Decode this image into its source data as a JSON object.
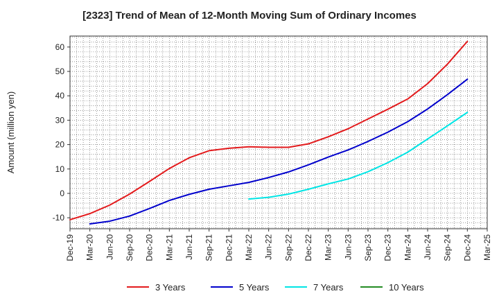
{
  "chart_data": {
    "type": "line",
    "title": "[2323]  Trend of Mean of 12-Month Moving Sum of Ordinary Incomes",
    "ylabel": "Amount (million yen)",
    "xlabel": "",
    "ylim": [
      -14.5,
      64.5
    ],
    "yticks": [
      -10,
      0,
      10,
      20,
      30,
      40,
      50,
      60
    ],
    "categories": [
      "Dec-19",
      "Mar-20",
      "Jun-20",
      "Sep-20",
      "Dec-20",
      "Mar-21",
      "Jun-21",
      "Sep-21",
      "Dec-21",
      "Mar-22",
      "Jun-22",
      "Sep-22",
      "Dec-22",
      "Mar-23",
      "Jun-23",
      "Sep-23",
      "Dec-23",
      "Mar-24",
      "Jun-24",
      "Sep-24",
      "Dec-24",
      "Mar-25"
    ],
    "grid": true,
    "legend_position": "bottom",
    "series": [
      {
        "name": "3 Years",
        "color": "#e31a1c",
        "values": [
          -10.8,
          -8.3,
          -4.8,
          -0.3,
          4.9,
          10.2,
          14.6,
          17.5,
          18.5,
          19.1,
          18.9,
          18.9,
          20.3,
          23.2,
          26.5,
          30.5,
          34.5,
          38.7,
          45.0,
          53.0,
          62.3,
          null
        ]
      },
      {
        "name": "5 Years",
        "color": "#0000cc",
        "values": [
          null,
          -12.5,
          -11.4,
          -9.3,
          -6.2,
          -2.9,
          -0.4,
          1.7,
          3.1,
          4.5,
          6.5,
          8.8,
          11.7,
          14.9,
          17.8,
          21.3,
          25.1,
          29.4,
          34.6,
          40.5,
          46.8,
          null
        ]
      },
      {
        "name": "7 Years",
        "color": "#00e5e5",
        "values": [
          null,
          null,
          null,
          null,
          null,
          null,
          null,
          null,
          null,
          -2.3,
          -1.6,
          -0.3,
          1.7,
          3.9,
          5.9,
          8.9,
          12.6,
          16.9,
          22.3,
          27.7,
          33.2,
          null
        ]
      },
      {
        "name": "10 Years",
        "color": "#228b22",
        "values": [
          null,
          null,
          null,
          null,
          null,
          null,
          null,
          null,
          null,
          null,
          null,
          null,
          null,
          null,
          null,
          null,
          null,
          null,
          null,
          null,
          null,
          null
        ]
      }
    ]
  }
}
